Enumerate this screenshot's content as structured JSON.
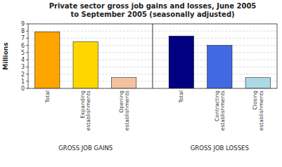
{
  "chart_data": {
    "type": "bar",
    "title": "Private sector gross job gains and losses, June 2005\nto September 2005 (seasonally adjusted)",
    "categories": [
      "Total",
      "Expanding\nestablishments",
      "Opening\nestablishments",
      "Total",
      "Contracting\nestablishments",
      "Closing\nestablishments"
    ],
    "values": [
      7.9,
      6.5,
      1.5,
      7.3,
      6.0,
      1.5
    ],
    "colors": [
      "#FFA500",
      "#FFD700",
      "#F4C2A0",
      "#000080",
      "#4169E1",
      "#ADD8E6"
    ],
    "annotations": [
      "GROSS JOB GAINS",
      "GROSS JOB LOSSES"
    ],
    "y_label": "Millions",
    "ylim": [
      0,
      9
    ],
    "yticks": [
      0,
      1,
      2,
      3,
      4,
      5,
      6,
      7,
      8,
      9
    ],
    "grid": true
  }
}
